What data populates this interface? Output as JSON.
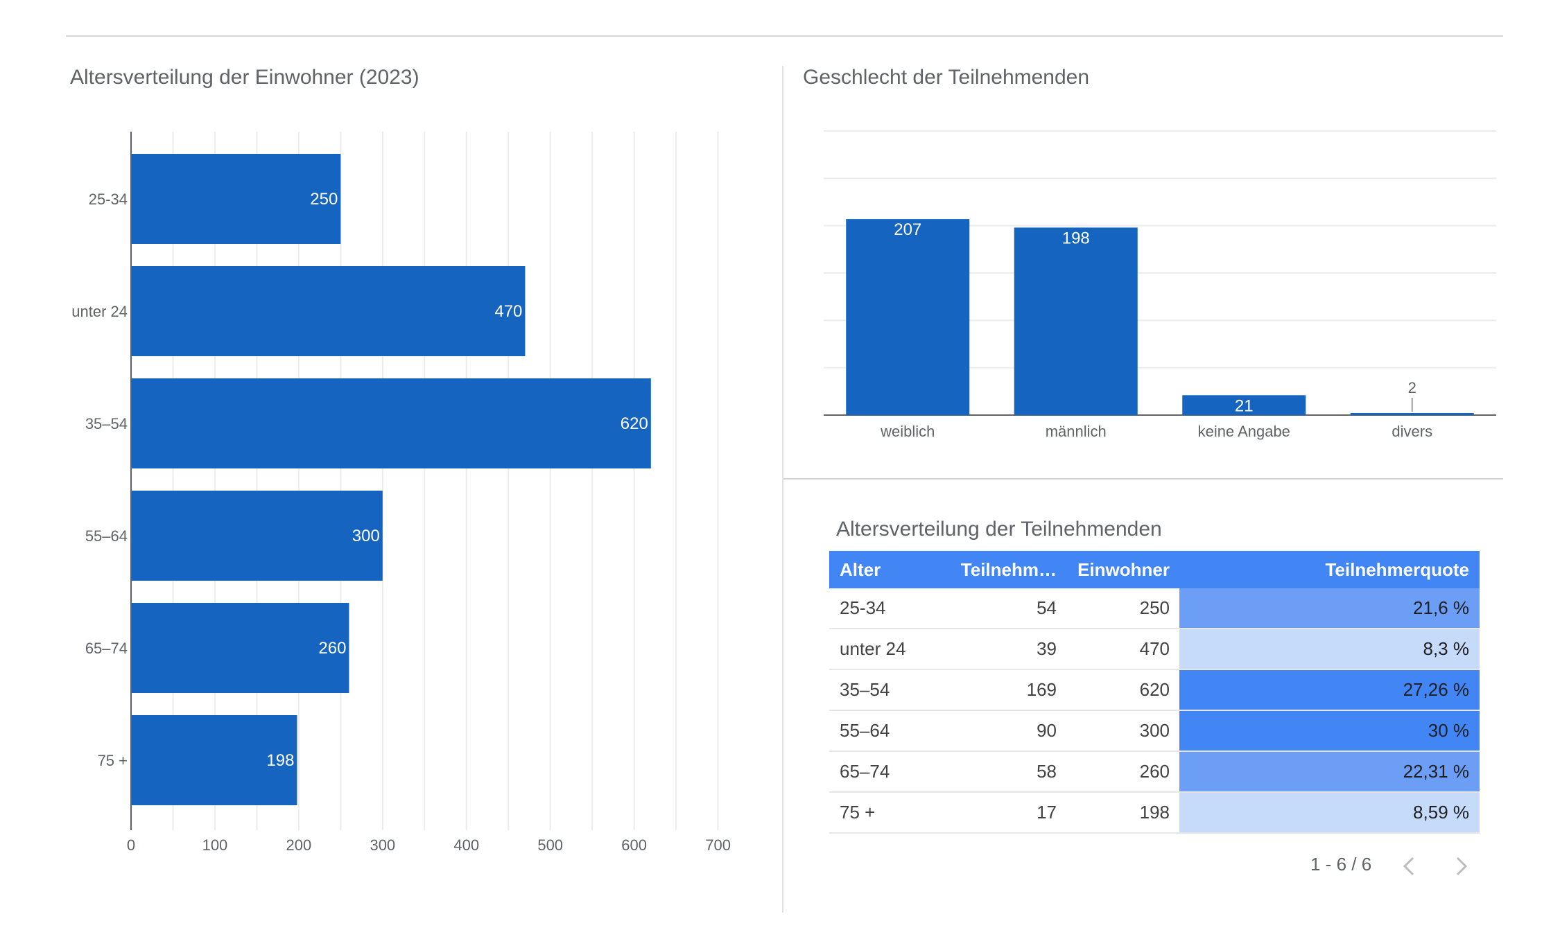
{
  "colors": {
    "bar": "#1565c0",
    "header_bg": "#4285f4",
    "heat_high": "#4285f4",
    "heat_mid": "#6d9ef6",
    "heat_low": "#c6daf9"
  },
  "left_chart": {
    "title": "Altersverteilung der Einwohner (2023)"
  },
  "gender_chart": {
    "title": "Geschlecht der Teilnehmenden"
  },
  "table": {
    "title": "Altersverteilung der Teilnehmenden",
    "columns": [
      "Alter",
      "Teilnehm…",
      "Einwohner",
      "Teilnehmerquote"
    ],
    "rows": [
      {
        "alter": "25-34",
        "teilnehmende": "54",
        "einwohner": "250",
        "quote": "21,6 %",
        "quote_value": 21.6
      },
      {
        "alter": "unter 24",
        "teilnehmende": "39",
        "einwohner": "470",
        "quote": "8,3 %",
        "quote_value": 8.3
      },
      {
        "alter": "35–54",
        "teilnehmende": "169",
        "einwohner": "620",
        "quote": "27,26 %",
        "quote_value": 27.26
      },
      {
        "alter": "55–64",
        "teilnehmende": "90",
        "einwohner": "300",
        "quote": "30 %",
        "quote_value": 30
      },
      {
        "alter": "65–74",
        "teilnehmende": "58",
        "einwohner": "260",
        "quote": "22,31 %",
        "quote_value": 22.31
      },
      {
        "alter": "75 +",
        "teilnehmende": "17",
        "einwohner": "198",
        "quote": "8,59 %",
        "quote_value": 8.59
      }
    ],
    "pagination": "1 - 6 / 6",
    "prev_icon": "chevron-left-icon",
    "next_icon": "chevron-right-icon"
  },
  "chart_data": [
    {
      "type": "bar",
      "orientation": "horizontal",
      "title": "Altersverteilung der Einwohner (2023)",
      "categories": [
        "25-34",
        "unter 24",
        "35–54",
        "55–64",
        "65–74",
        "75 +"
      ],
      "values": [
        250,
        470,
        620,
        300,
        260,
        198
      ],
      "xlim": [
        0,
        700
      ],
      "xticks": [
        "0",
        "100",
        "200",
        "300",
        "400",
        "500",
        "600",
        "700"
      ],
      "grid": true,
      "data_labels": true
    },
    {
      "type": "bar",
      "orientation": "vertical",
      "title": "Geschlecht der Teilnehmenden",
      "categories": [
        "weiblich",
        "männlich",
        "keine Angabe",
        "divers"
      ],
      "values": [
        207,
        198,
        21,
        2
      ],
      "ylim": [
        0,
        300
      ],
      "grid": true,
      "data_labels": true
    }
  ]
}
